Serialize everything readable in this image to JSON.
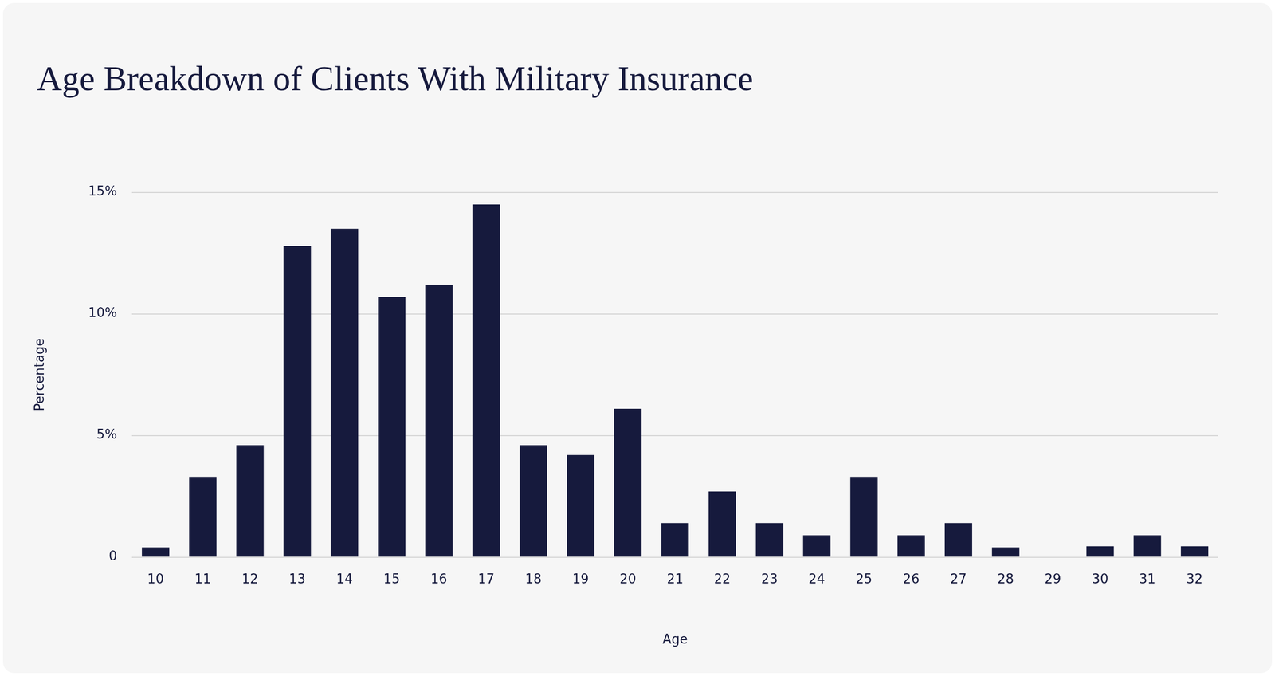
{
  "chart_data": {
    "type": "bar",
    "title": "Age Breakdown of Clients With Military Insurance",
    "x_label": "Age",
    "y_label": "Percentage",
    "categories": [
      "10",
      "11",
      "12",
      "13",
      "14",
      "15",
      "16",
      "17",
      "18",
      "19",
      "20",
      "21",
      "22",
      "23",
      "24",
      "25",
      "26",
      "27",
      "28",
      "29",
      "30",
      "31",
      "32"
    ],
    "values": [
      0.4,
      3.3,
      4.6,
      12.8,
      13.5,
      10.7,
      11.2,
      14.5,
      4.6,
      4.2,
      6.1,
      1.4,
      2.7,
      1.4,
      0.9,
      3.3,
      0.9,
      1.4,
      0.4,
      0,
      0.45,
      0.9,
      0.45
    ],
    "color": "#161a3d",
    "ylim": [
      0,
      15
    ],
    "yticks": [
      0,
      {
        "value": 5,
        "label": "5%"
      },
      {
        "value": 10,
        "label": "10%"
      },
      {
        "value": 15,
        "label": "15%"
      }
    ],
    "grid": true
  }
}
